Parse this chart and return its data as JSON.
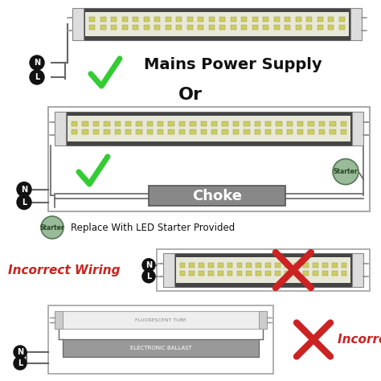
{
  "bg_color": "#ffffff",
  "section1_title": "Mains Power Supply",
  "section2_or": "Or",
  "section2_choke": "Choke",
  "section2_starter_label": "Starter",
  "section2_note": "Replace With LED Starter Provided",
  "section3_label": "Incorrect Wiring",
  "section4_label": "Incorrect Wiring",
  "section4_ballast": "ELECTRONIC BALLAST",
  "section4_tube": "FLUORESCENT TUBE",
  "green_color": "#33cc33",
  "red_color": "#cc2222",
  "dark_color": "#111111",
  "gray_color": "#999999",
  "choke_color": "#888888",
  "starter_color": "#99bb99",
  "led_dot_color": "#cccc66",
  "wire_color": "#666666",
  "tube_dark": "#444444",
  "tube_inner_bg": "#e8e8d8",
  "cap_color": "#dddddd",
  "fixture_edge": "#aaaaaa"
}
